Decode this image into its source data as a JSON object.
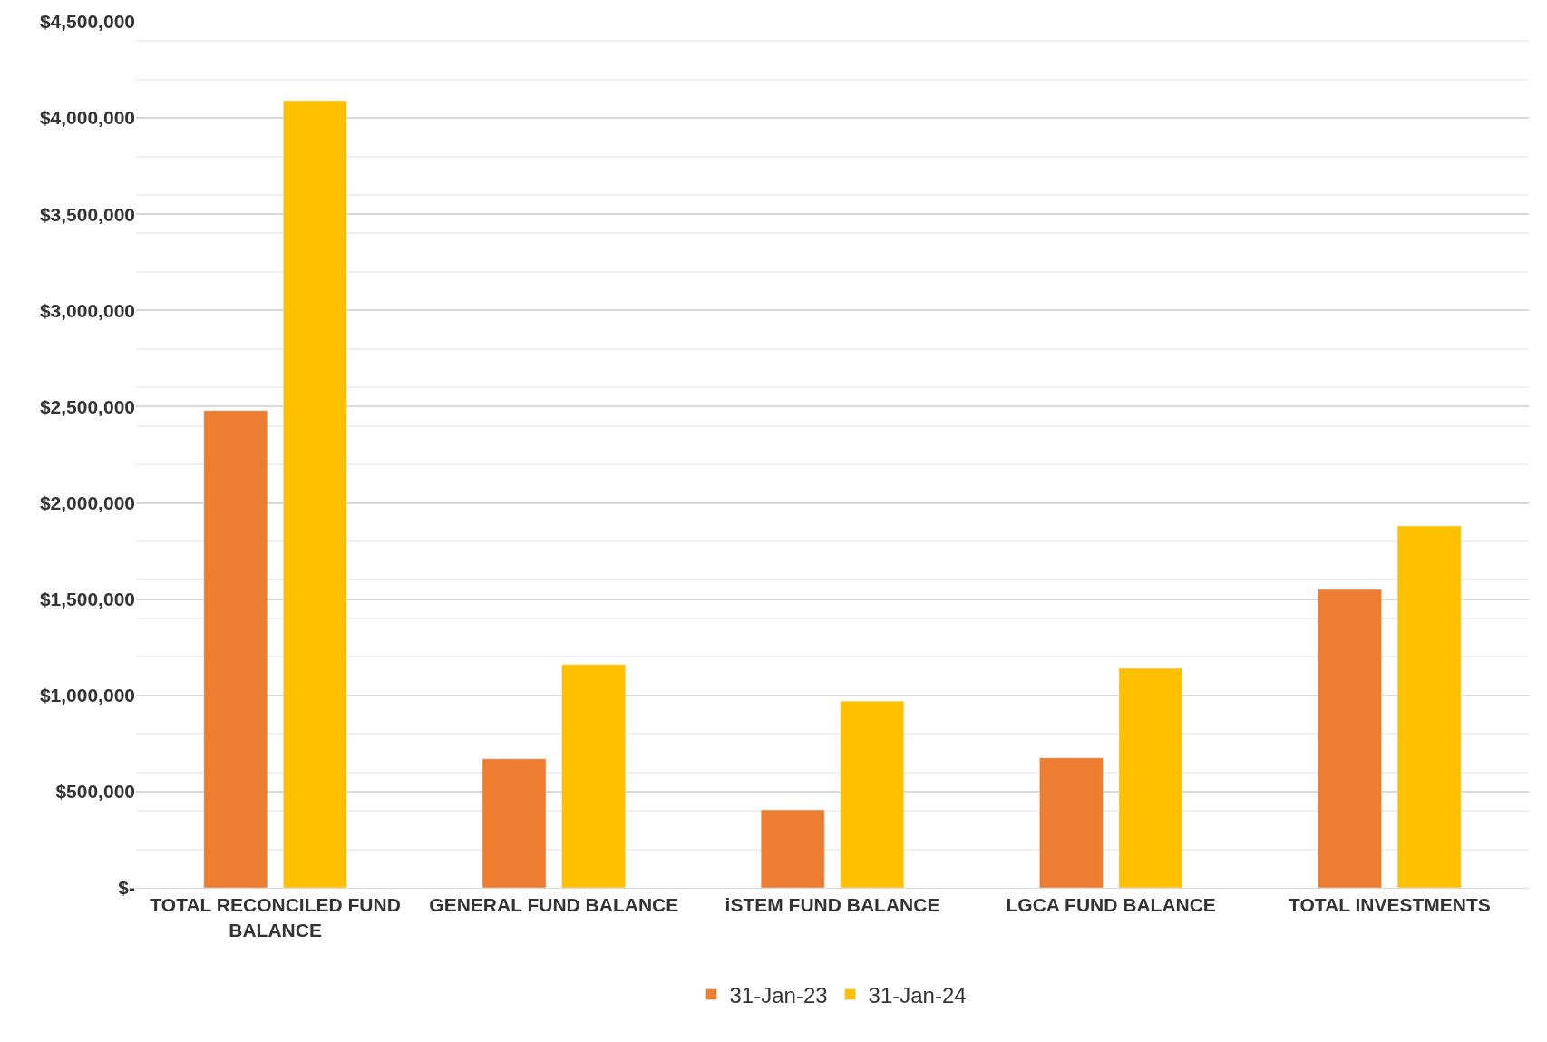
{
  "chart_data": {
    "type": "bar",
    "categories": [
      "TOTAL RECONCILED FUND BALANCE",
      "GENERAL FUND BALANCE",
      "iSTEM FUND BALANCE",
      "LGCA FUND BALANCE",
      "TOTAL INVESTMENTS"
    ],
    "series": [
      {
        "name": "31-Jan-23",
        "color": "#ed7d31",
        "values": [
          2480000,
          670000,
          405000,
          675000,
          1550000
        ]
      },
      {
        "name": "31-Jan-24",
        "color": "#ffc000",
        "values": [
          4090000,
          1160000,
          970000,
          1140000,
          1880000
        ]
      }
    ],
    "ylim": [
      0,
      4500000
    ],
    "yticks": [
      {
        "value": 0,
        "label": "$-"
      },
      {
        "value": 500000,
        "label": "$500,000"
      },
      {
        "value": 1000000,
        "label": "$1,000,000"
      },
      {
        "value": 1500000,
        "label": "$1,500,000"
      },
      {
        "value": 2000000,
        "label": "$2,000,000"
      },
      {
        "value": 2500000,
        "label": "$2,500,000"
      },
      {
        "value": 3000000,
        "label": "$3,000,000"
      },
      {
        "value": 3500000,
        "label": "$3,500,000"
      },
      {
        "value": 4000000,
        "label": "$4,000,000"
      },
      {
        "value": 4500000,
        "label": "$4,500,000"
      }
    ],
    "grid": "y",
    "legend": "bottom"
  }
}
